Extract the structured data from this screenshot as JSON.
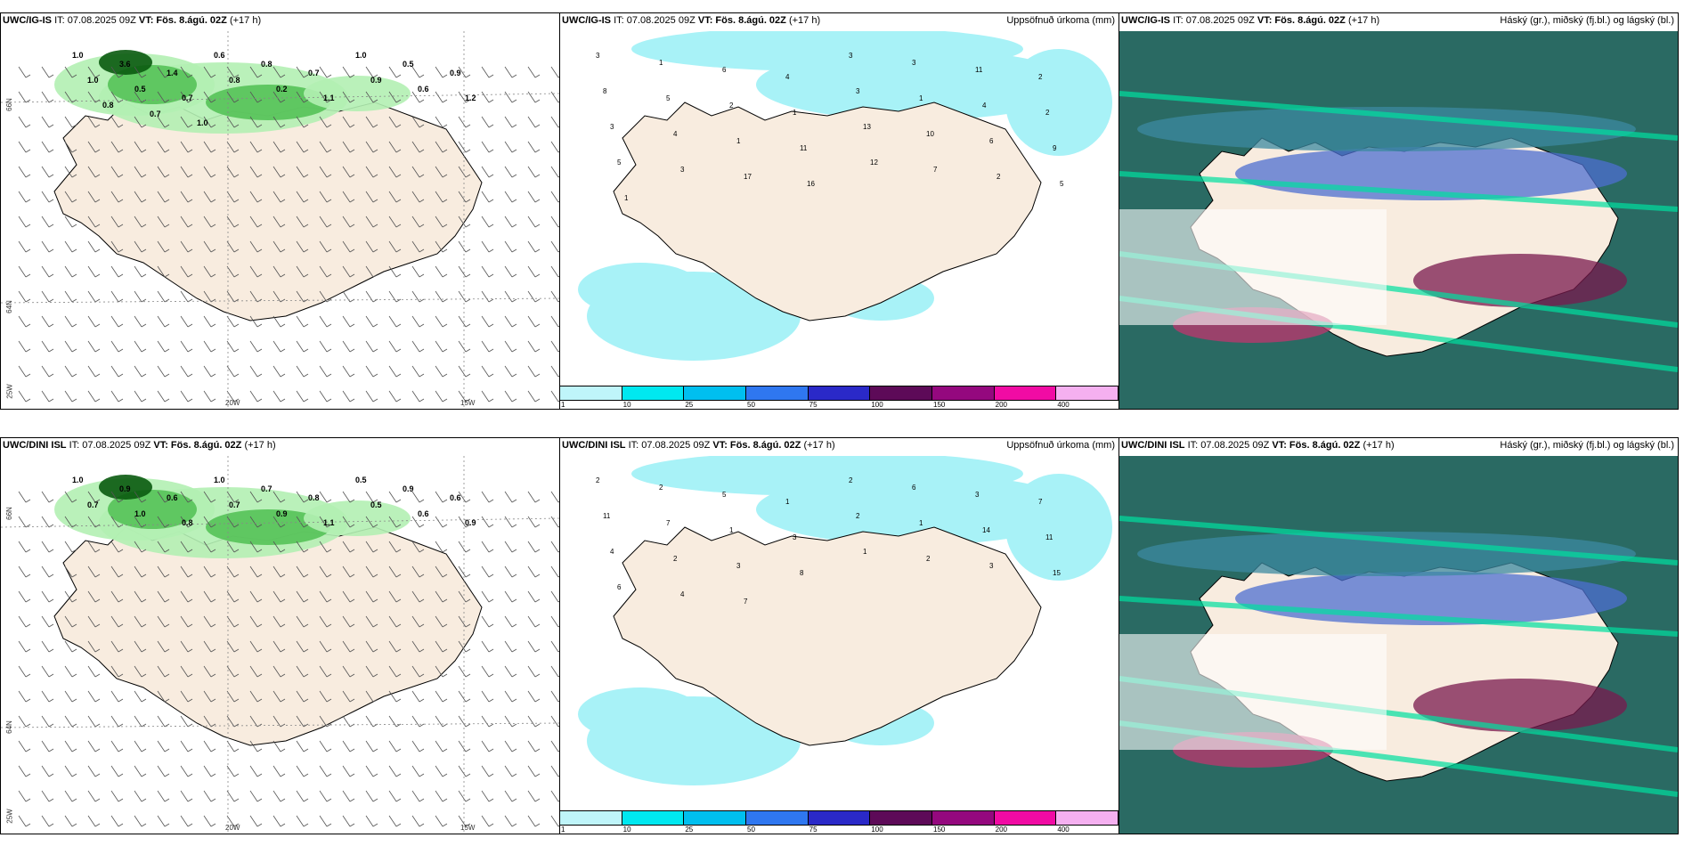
{
  "panels": [
    {
      "id": "r1c1",
      "model": "UWC/IG-IS",
      "it_text": "IT: 07.08.2025 09Z",
      "vt_text": "VT: Fös. 8.ágú. 02Z",
      "lead_text": "(+17 h)",
      "right_label": "",
      "type": "wind",
      "axis_labels": {
        "lon_left": "20W",
        "lon_right": "15W",
        "lat_top": "66N",
        "lat_mid": "64N",
        "lat_bottom": "25W"
      },
      "values": [
        "1.0",
        "3.6",
        "1.4",
        "0.6",
        "0.8",
        "0.7",
        "1.0",
        "0.5",
        "0.9",
        "1.0",
        "0.5",
        "0.7",
        "0.8",
        "0.2",
        "1.1",
        "0.9",
        "0.6",
        "1.2",
        "0.8",
        "0.7",
        "1.0"
      ]
    },
    {
      "id": "r1c2",
      "model": "UWC/IG-IS",
      "it_text": "IT: 07.08.2025 09Z",
      "vt_text": "VT: Fös. 8.ágú. 02Z",
      "lead_text": "(+17 h)",
      "right_label": "Uppsöfnuð úrkoma (mm)",
      "type": "precip",
      "values": [
        "3",
        "1",
        "6",
        "4",
        "3",
        "3",
        "11",
        "2",
        "8",
        "5",
        "2",
        "1",
        "3",
        "1",
        "4",
        "2",
        "3",
        "4",
        "1",
        "11",
        "13",
        "10",
        "6",
        "9",
        "5",
        "3",
        "17",
        "16",
        "12",
        "7",
        "2",
        "5",
        "1"
      ]
    },
    {
      "id": "r1c3",
      "model": "UWC/IG-IS",
      "it_text": "IT: 07.08.2025 09Z",
      "vt_text": "VT: Fös. 8.ágú. 02Z",
      "lead_text": "(+17 h)",
      "right_label": "Háský (gr.), miðský (fj.bl.) og lágský (bl.)",
      "type": "cloud"
    },
    {
      "id": "r2c1",
      "model": "UWC/DINI ISL",
      "it_text": "IT: 07.08.2025 09Z",
      "vt_text": "VT: Fös. 8.ágú. 02Z",
      "lead_text": "(+17 h)",
      "right_label": "",
      "type": "wind",
      "axis_labels": {
        "lon_left": "20W",
        "lon_right": "15W",
        "lat_top": "66N",
        "lat_mid": "64N",
        "lat_bottom": "25W"
      },
      "values": [
        "1.0",
        "0.9",
        "0.6",
        "1.0",
        "0.7",
        "0.8",
        "0.5",
        "0.9",
        "0.6",
        "0.7",
        "1.0",
        "0.8",
        "0.7",
        "0.9",
        "1.1",
        "0.5",
        "0.6",
        "0.9"
      ]
    },
    {
      "id": "r2c2",
      "model": "UWC/DINI ISL",
      "it_text": "IT: 07.08.2025 09Z",
      "vt_text": "VT: Fös. 8.ágú. 02Z",
      "lead_text": "(+17 h)",
      "right_label": "Uppsöfnuð úrkoma (mm)",
      "type": "precip",
      "values": [
        "2",
        "2",
        "5",
        "1",
        "2",
        "6",
        "3",
        "7",
        "11",
        "7",
        "1",
        "3",
        "2",
        "1",
        "14",
        "11",
        "4",
        "2",
        "3",
        "8",
        "1",
        "2",
        "3",
        "15",
        "6",
        "4",
        "7"
      ]
    },
    {
      "id": "r2c3",
      "model": "UWC/DINI ISL",
      "it_text": "IT: 07.08.2025 09Z",
      "vt_text": "VT: Fös. 8.ágú. 02Z",
      "lead_text": "(+17 h)",
      "right_label": "Háský (gr.), miðský (fj.bl.) og lágský (bl.)",
      "type": "cloud"
    }
  ],
  "colorbar": {
    "labels": [
      "1",
      "10",
      "25",
      "50",
      "75",
      "100",
      "150",
      "200",
      "400"
    ],
    "colors": [
      "#bff5fa",
      "#00e8f0",
      "#00bfef",
      "#2f77f0",
      "#2a29c8",
      "#5d0a58",
      "#94087e",
      "#f10ba4",
      "#f5b0f0"
    ]
  },
  "colors": {
    "land": "#f8ecdf",
    "sea": "#ffffff",
    "precip_light": "#a8f2f7",
    "green_light": "#b3efb3",
    "green_mid": "#55c258",
    "green_dark": "#0a5a10",
    "cloud_high": "#2a6a63",
    "cloud_mid": "#3c8aa0",
    "cloud_low": "#00e0a0"
  }
}
